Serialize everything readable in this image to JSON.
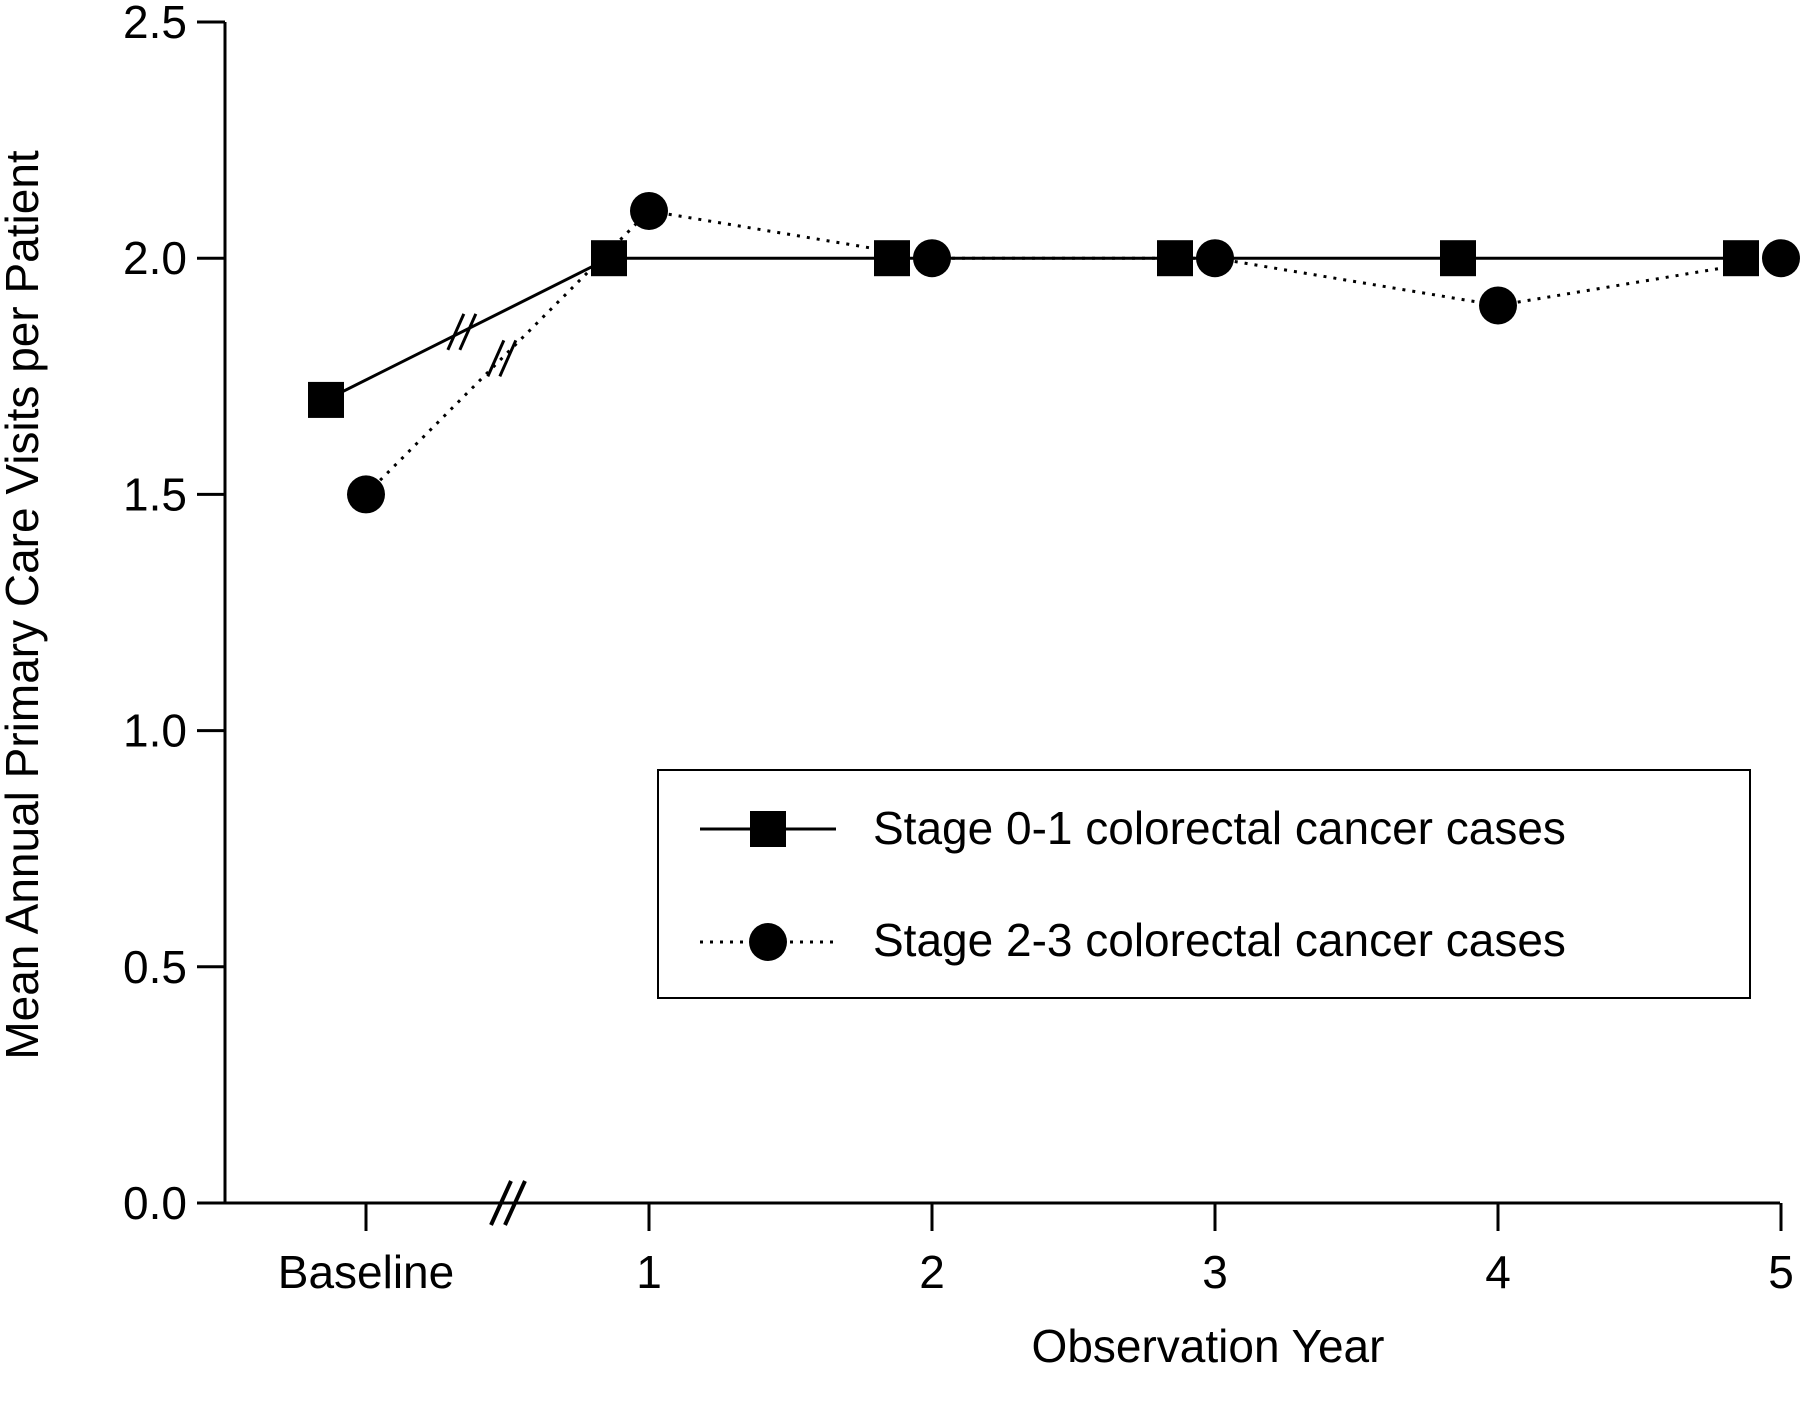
{
  "chart_data": {
    "type": "line",
    "xlabel": "Observation Year",
    "ylabel": "Mean Annual Primary Care Visits per Patient",
    "ylim": [
      0,
      2.5
    ],
    "yticks": [
      "0.0",
      "0.5",
      "1.0",
      "1.5",
      "2.0",
      "2.5"
    ],
    "categories": [
      "Baseline",
      "1",
      "2",
      "3",
      "4",
      "5"
    ],
    "axis_break": "between Baseline and 1",
    "grid": false,
    "legend_position": "lower-right",
    "series": [
      {
        "name": "Stage 0-1 colorectal cancer cases",
        "marker": "square",
        "line_style": "solid",
        "values": [
          1.7,
          2.0,
          2.0,
          2.0,
          2.0,
          2.0
        ]
      },
      {
        "name": "Stage 2-3 colorectal cancer cases",
        "marker": "circle",
        "line_style": "dotted",
        "values": [
          1.5,
          2.1,
          2.0,
          2.0,
          1.9,
          2.0
        ]
      }
    ],
    "colors": {
      "lines": "#000000",
      "background": "#ffffff"
    }
  }
}
